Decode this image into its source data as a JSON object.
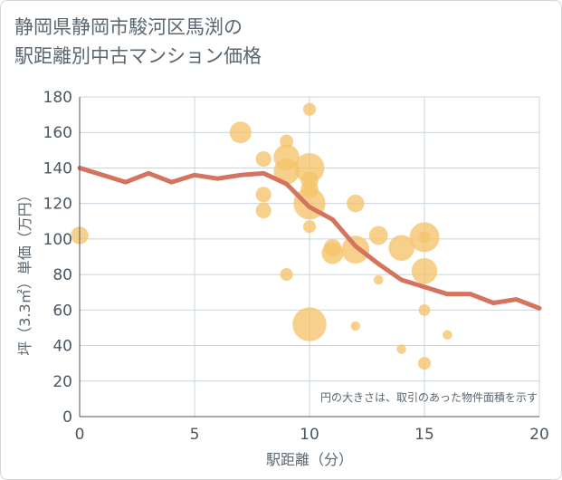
{
  "header": {
    "title_line1": "静岡県静岡市駿河区馬渕の",
    "title_line2": "駅距離別中古マンション価格"
  },
  "colors": {
    "line": "#d4735e",
    "bubble": "#f5c46a",
    "grid": "#c8d4de",
    "axis_text": "#4a5660"
  },
  "chart_data": {
    "type": "scatter",
    "title": "静岡県静岡市駿河区馬渕の駅距離別中古マンション価格",
    "xlabel": "駅距離（分）",
    "ylabel": "坪（3.3㎡）単価（万円）",
    "xlim": [
      0,
      20
    ],
    "ylim": [
      0,
      180
    ],
    "x_ticks": [
      "0",
      "5",
      "10",
      "15",
      "20"
    ],
    "y_ticks": [
      "0",
      "20",
      "40",
      "60",
      "80",
      "100",
      "120",
      "140",
      "160",
      "180"
    ],
    "grid": true,
    "annotation": "円の大きさは、取引のあった物件面積を示す",
    "line": {
      "x": [
        0,
        1,
        2,
        3,
        4,
        5,
        6,
        7,
        8,
        9,
        10,
        11,
        12,
        13,
        14,
        15,
        16,
        17,
        18,
        19,
        20
      ],
      "y": [
        140,
        136,
        132,
        137,
        132,
        136,
        134,
        136,
        137,
        131,
        118,
        111,
        96,
        86,
        77,
        73,
        69,
        69,
        64,
        66,
        61
      ]
    },
    "bubbles": [
      {
        "x": 0,
        "y": 102,
        "size": 3
      },
      {
        "x": 7,
        "y": 160,
        "size": 4
      },
      {
        "x": 8,
        "y": 145,
        "size": 2.5
      },
      {
        "x": 8,
        "y": 125,
        "size": 2.5
      },
      {
        "x": 8,
        "y": 116,
        "size": 2.5
      },
      {
        "x": 9,
        "y": 155,
        "size": 2
      },
      {
        "x": 9,
        "y": 146,
        "size": 5
      },
      {
        "x": 9,
        "y": 138,
        "size": 5
      },
      {
        "x": 9,
        "y": 80,
        "size": 1.8
      },
      {
        "x": 10,
        "y": 173,
        "size": 1.8
      },
      {
        "x": 10,
        "y": 140,
        "size": 6
      },
      {
        "x": 10,
        "y": 133,
        "size": 3
      },
      {
        "x": 10,
        "y": 128,
        "size": 3
      },
      {
        "x": 10,
        "y": 120,
        "size": 6.5
      },
      {
        "x": 10,
        "y": 107,
        "size": 1.8
      },
      {
        "x": 10,
        "y": 52,
        "size": 7
      },
      {
        "x": 11,
        "y": 95,
        "size": 3
      },
      {
        "x": 11,
        "y": 92,
        "size": 4
      },
      {
        "x": 12,
        "y": 120,
        "size": 3
      },
      {
        "x": 12,
        "y": 94,
        "size": 5.5
      },
      {
        "x": 12,
        "y": 51,
        "size": 1
      },
      {
        "x": 13,
        "y": 102,
        "size": 3.3
      },
      {
        "x": 13,
        "y": 77,
        "size": 1
      },
      {
        "x": 14,
        "y": 95,
        "size": 5
      },
      {
        "x": 14,
        "y": 38,
        "size": 1
      },
      {
        "x": 15,
        "y": 101,
        "size": 6
      },
      {
        "x": 15,
        "y": 101,
        "size": 1.5
      },
      {
        "x": 15,
        "y": 82,
        "size": 5
      },
      {
        "x": 15,
        "y": 60,
        "size": 1.5
      },
      {
        "x": 15,
        "y": 30,
        "size": 1.8
      },
      {
        "x": 16,
        "y": 46,
        "size": 1
      }
    ]
  }
}
